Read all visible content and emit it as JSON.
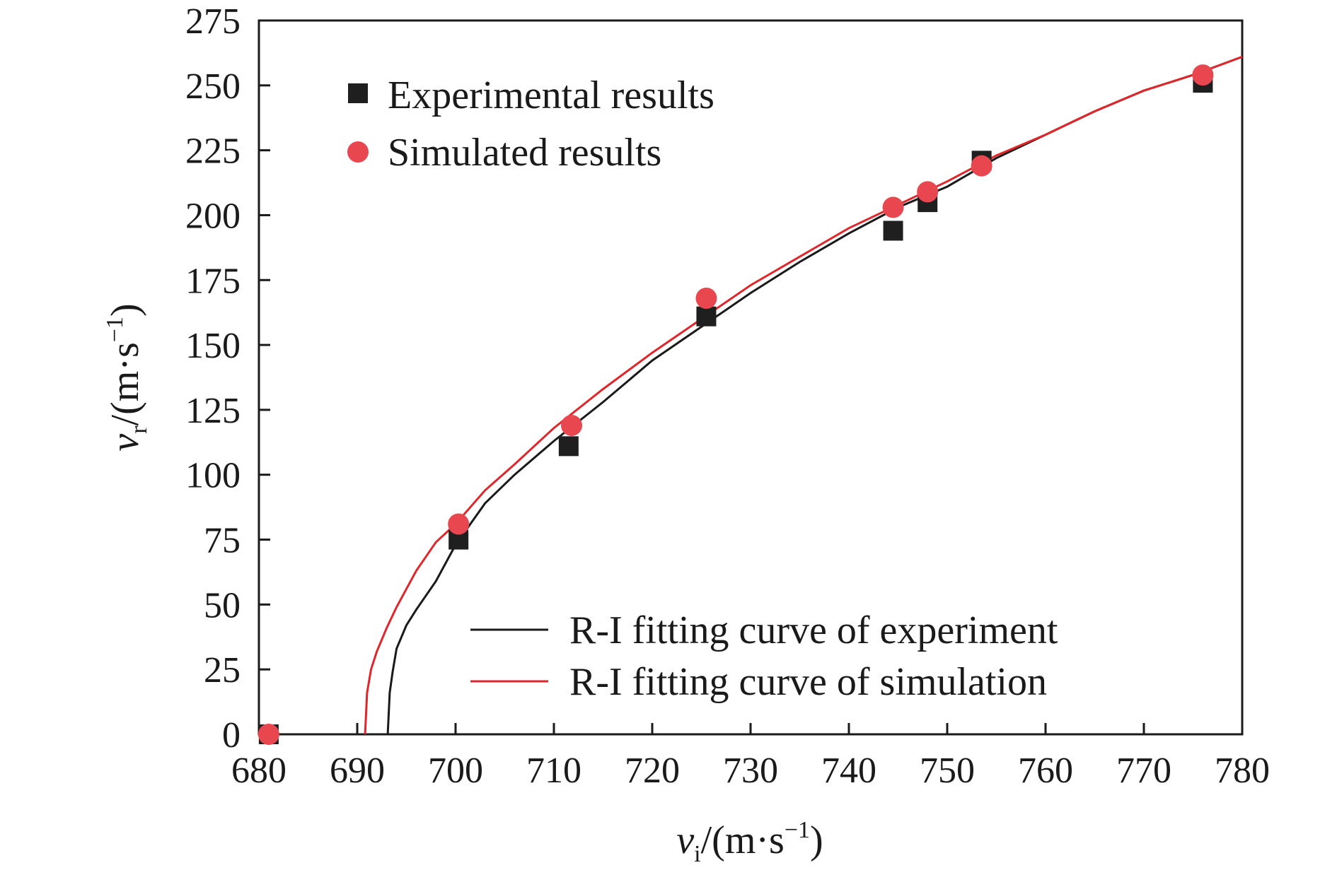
{
  "chart_data": {
    "type": "scatter",
    "title": "",
    "xlabel": {
      "var": "v",
      "sub": "i",
      "unit_open": "/(m·s",
      "sup": "−1",
      "unit_close": ")"
    },
    "ylabel": {
      "var": "v",
      "sub": "r",
      "unit_open": "/(m·s",
      "sup": "−1",
      "unit_close": ")"
    },
    "xlim": [
      680,
      780
    ],
    "ylim": [
      0,
      275
    ],
    "xticks": [
      "680",
      "690",
      "700",
      "710",
      "720",
      "730",
      "740",
      "750",
      "760",
      "770",
      "780"
    ],
    "yticks": [
      "0",
      "25",
      "50",
      "75",
      "100",
      "125",
      "150",
      "175",
      "200",
      "225",
      "250",
      "275"
    ],
    "grid": false,
    "series": [
      {
        "name": "Experimental results",
        "kind": "points",
        "marker": "square",
        "color": "#1f1f1f",
        "x": [
          681,
          700.3,
          711.5,
          725.5,
          744.5,
          748,
          753.5,
          776
        ],
        "y": [
          0,
          75,
          111,
          161,
          194,
          205,
          221,
          251
        ]
      },
      {
        "name": "Simulated results",
        "kind": "points",
        "marker": "circle",
        "color": "#e8474f",
        "x": [
          681,
          700.3,
          711.8,
          725.5,
          744.5,
          748,
          753.5,
          776
        ],
        "y": [
          0,
          81,
          119,
          168,
          203,
          209,
          219,
          254
        ]
      },
      {
        "name": "R-I fitting curve of experiment",
        "kind": "line",
        "color": "#1a1a1a",
        "x": [
          693.1,
          693.3,
          693.6,
          694,
          695,
          696,
          698,
          700,
          703,
          706,
          710,
          715,
          720,
          725,
          730,
          735,
          740,
          745,
          750,
          755,
          760,
          765,
          770,
          775,
          780
        ],
        "y": [
          0,
          16,
          24,
          33,
          42,
          48,
          59,
          73,
          89,
          100,
          113,
          128,
          144,
          157,
          170,
          182,
          193,
          203,
          211,
          222,
          231,
          240,
          248,
          254,
          261
        ]
      },
      {
        "name": "R-I fitting curve of simulation",
        "kind": "line",
        "color": "#e0262b",
        "x": [
          690.8,
          691,
          691.4,
          692,
          693,
          694,
          696,
          698,
          700,
          703,
          706,
          710,
          715,
          720,
          725,
          730,
          735,
          740,
          745,
          750,
          755,
          760,
          765,
          770,
          775,
          780
        ],
        "y": [
          0,
          16,
          25,
          32,
          41,
          49,
          63,
          74,
          81,
          94,
          104,
          118,
          133,
          147,
          160,
          173,
          184,
          195,
          204,
          213,
          223,
          231,
          240,
          248,
          254,
          261
        ]
      }
    ],
    "legend": {
      "position": "top-left and bottom-right"
    }
  }
}
